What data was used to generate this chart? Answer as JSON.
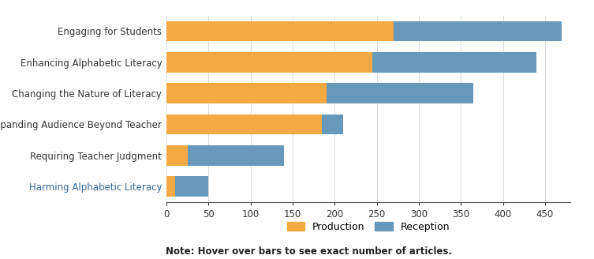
{
  "categories": [
    "Harming Alphabetic Literacy",
    "Requiring Teacher Judgment",
    "Expanding Audience Beyond Teacher",
    "Changing the Nature of Literacy",
    "Enhancing Alphabetic Literacy",
    "Engaging for Students"
  ],
  "production": [
    10,
    25,
    185,
    190,
    245,
    270
  ],
  "reception": [
    40,
    115,
    25,
    175,
    195,
    200
  ],
  "production_color": "#F5A944",
  "reception_color": "#6699BB",
  "xlim": [
    0,
    480
  ],
  "xticks": [
    0,
    50,
    100,
    150,
    200,
    250,
    300,
    350,
    400,
    450
  ],
  "legend_labels": [
    "Production",
    "Reception"
  ],
  "note_text": "Note: Hover over bars to see exact number of articles.",
  "background_color": "#FFFFFF",
  "label_color_default": "#333333",
  "label_color_blue": [
    "Harming Alphabetic Literacy"
  ],
  "label_color_blue_hex": "#336699"
}
